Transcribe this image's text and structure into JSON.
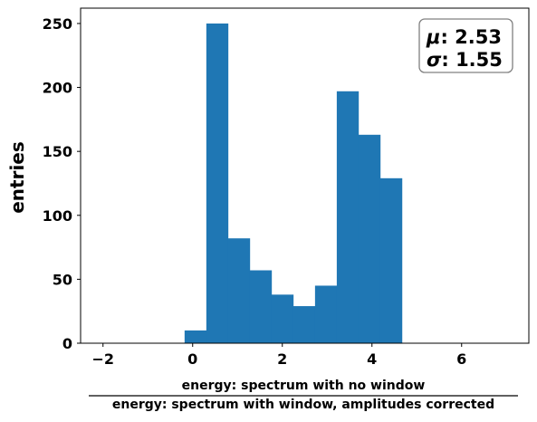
{
  "chart_data": {
    "type": "bar",
    "title": "",
    "xlabel_numerator": "energy: spectrum with no window",
    "xlabel_denominator": "energy: spectrum with window, amplitudes corrected",
    "ylabel": "entries",
    "xlim": [
      -2.5,
      7.5
    ],
    "ylim": [
      0,
      262
    ],
    "xticks": [
      -2,
      0,
      2,
      4,
      6
    ],
    "yticks": [
      0,
      50,
      100,
      150,
      200,
      250
    ],
    "grid": false,
    "bin_width": 0.485,
    "bins": [
      {
        "x0": -0.18,
        "value": 10
      },
      {
        "x0": 0.305,
        "value": 250
      },
      {
        "x0": 0.79,
        "value": 82
      },
      {
        "x0": 1.275,
        "value": 57
      },
      {
        "x0": 1.76,
        "value": 38
      },
      {
        "x0": 2.245,
        "value": 29
      },
      {
        "x0": 2.73,
        "value": 45
      },
      {
        "x0": 3.215,
        "value": 197
      },
      {
        "x0": 3.7,
        "value": 163
      },
      {
        "x0": 4.185,
        "value": 129
      }
    ],
    "bar_color": "#1f77b4",
    "stats_box": {
      "mu_symbol": "μ",
      "mu_value": ": 2.53",
      "sigma_symbol": "σ",
      "sigma_value": ": 1.55",
      "placement": "top-right"
    }
  }
}
